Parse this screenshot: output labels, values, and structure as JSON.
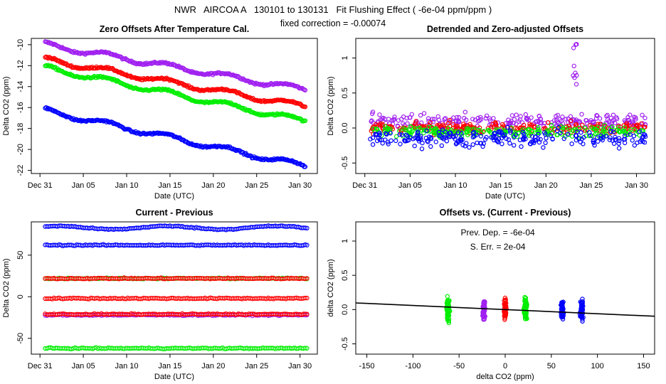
{
  "figure": {
    "title": "NWR   AIRCOA A   130101 to 130131   Fit Flushing Effect ( -6e-04 ppm/ppm )",
    "subtitle": "fixed correction = -0.00074"
  },
  "colors": {
    "blue": "#0000ff",
    "red": "#ff0000",
    "green": "#00ee00",
    "purple": "#a020f0",
    "black": "#000000"
  },
  "chart_data": [
    {
      "type": "scatter",
      "title": "Zero Offsets After Temperature Cal.",
      "xlabel": "Date (UTC)",
      "ylabel": "Delta CO2 (ppm)",
      "x_ticks": [
        "Dec 31",
        "Jan 05",
        "Jan 10",
        "Jan 15",
        "Jan 20",
        "Jan 25",
        "Jan 30"
      ],
      "y_ticks": [
        -10,
        -12,
        -14,
        -16,
        -18,
        -20,
        -22
      ],
      "xlim": [
        0,
        33
      ],
      "ylim": [
        -22.3,
        -9.4
      ],
      "series": [
        {
          "color": "purple",
          "start": -10.0,
          "end": -14.3
        },
        {
          "color": "red",
          "start": -11.4,
          "end": -15.9
        },
        {
          "color": "green",
          "start": -12.2,
          "end": -17.3
        },
        {
          "color": "blue",
          "start": -16.3,
          "end": -21.6
        }
      ]
    },
    {
      "type": "scatter",
      "title": "Detrended and Zero-adjusted Offsets",
      "xlabel": "Date (UTC)",
      "ylabel": "Delta CO2 (ppm)",
      "x_ticks": [
        "Dec 31",
        "Jan 05",
        "Jan 10",
        "Jan 15",
        "Jan 20",
        "Jan 25",
        "Jan 30"
      ],
      "y_ticks": [
        -0.5,
        0.0,
        0.5,
        1.0
      ],
      "xlim": [
        0,
        33
      ],
      "ylim": [
        -0.65,
        1.28
      ],
      "series": [
        {
          "color": "purple",
          "center": 0.1,
          "spread": 0.15
        },
        {
          "color": "red",
          "center": 0.0,
          "spread": 0.1
        },
        {
          "color": "green",
          "center": -0.05,
          "spread": 0.1
        },
        {
          "color": "blue",
          "center": -0.15,
          "spread": 0.15
        }
      ]
    },
    {
      "type": "scatter",
      "title": "Current - Previous",
      "xlabel": "Date (UTC)",
      "ylabel": "Delta CO2 (ppm)",
      "x_ticks": [
        "Dec 31",
        "Jan 05",
        "Jan 10",
        "Jan 15",
        "Jan 20",
        "Jan 25",
        "Jan 30"
      ],
      "y_ticks": [
        -50,
        0,
        50
      ],
      "xlim": [
        0,
        33
      ],
      "ylim": [
        -69,
        90
      ],
      "series": [
        {
          "color": "blue",
          "level": 83
        },
        {
          "color": "blue",
          "level": 62
        },
        {
          "color": "green",
          "level": 22
        },
        {
          "color": "red",
          "level": 22
        },
        {
          "color": "red",
          "level": -2
        },
        {
          "color": "purple",
          "level": -22
        },
        {
          "color": "red",
          "level": -21
        },
        {
          "color": "green",
          "level": -62
        }
      ]
    },
    {
      "type": "scatter",
      "title": "Offsets vs. (Current - Previous)",
      "xlabel": "delta CO2 (ppm)",
      "ylabel": "delta CO2 (ppm)",
      "x_ticks": [
        -150,
        -100,
        -50,
        0,
        50,
        100,
        150
      ],
      "y_ticks": [
        -0.5,
        0.0,
        0.5,
        1.0
      ],
      "xlim": [
        -162,
        162
      ],
      "ylim": [
        -0.65,
        1.28
      ],
      "annotations": [
        "Prev. Dep. =  -6e-04",
        "S. Err. =  2e-04"
      ],
      "fit_line": {
        "slope": -0.0006,
        "intercept": 0.0
      },
      "clusters": [
        {
          "color": "green",
          "x": -62
        },
        {
          "color": "purple",
          "x": -23
        },
        {
          "color": "red",
          "x": 0
        },
        {
          "color": "green",
          "x": 22
        },
        {
          "color": "blue",
          "x": 62
        },
        {
          "color": "blue",
          "x": 83
        }
      ]
    }
  ]
}
